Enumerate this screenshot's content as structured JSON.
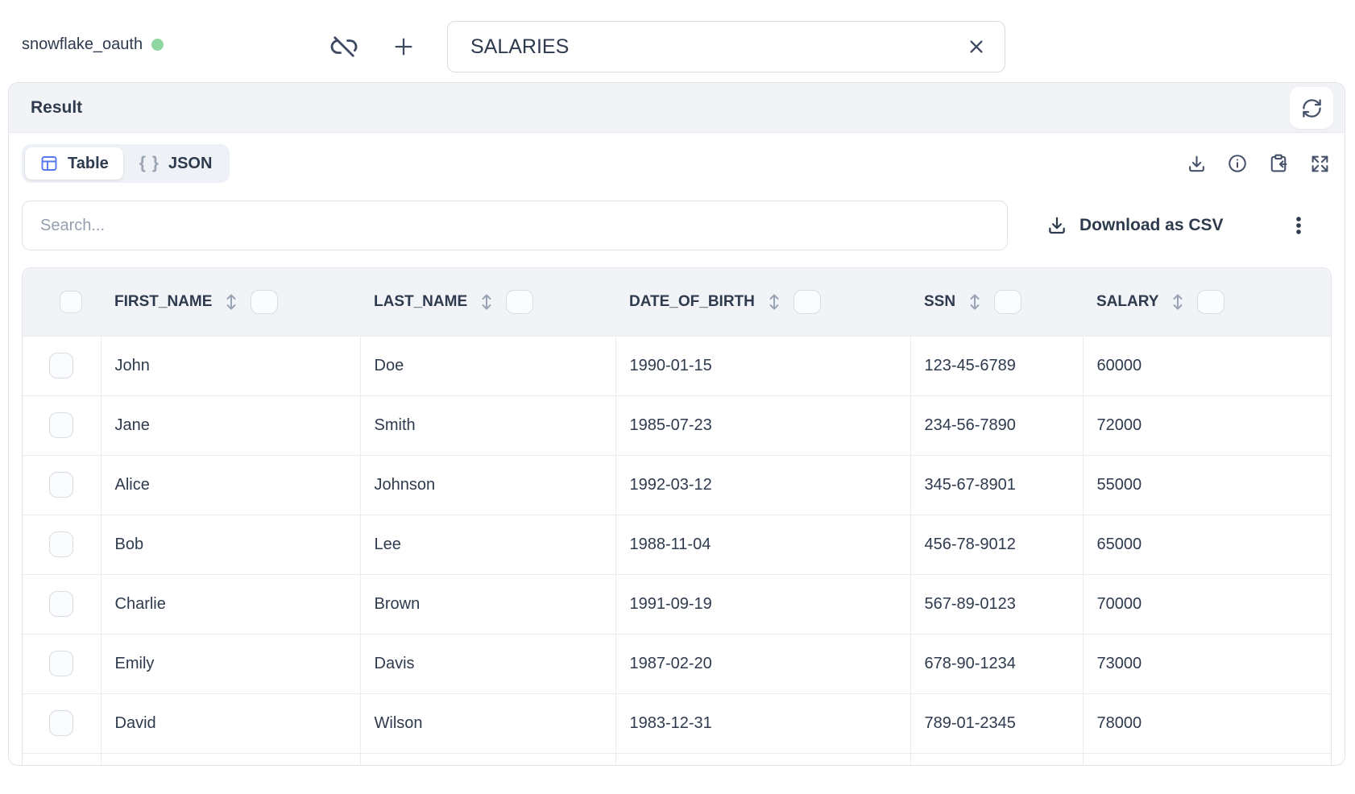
{
  "colors": {
    "accent_blue": "#5577f0",
    "status_green": "#8fd6a0",
    "ink": "#3d4961",
    "muted_gray": "#99a3b3"
  },
  "topbar": {
    "connection_label": "snowflake_oauth",
    "query_field": {
      "value": "SALARIES"
    }
  },
  "result_panel": {
    "title": "Result",
    "tabs": {
      "table_label": "Table",
      "json_glyph": "{ }",
      "json_label": "JSON"
    },
    "search_placeholder": "Search...",
    "download_csv_label": "Download as CSV",
    "table": {
      "columns": [
        "FIRST_NAME",
        "LAST_NAME",
        "DATE_OF_BIRTH",
        "SSN",
        "SALARY"
      ],
      "rows": [
        [
          "John",
          "Doe",
          "1990-01-15",
          "123-45-6789",
          "60000"
        ],
        [
          "Jane",
          "Smith",
          "1985-07-23",
          "234-56-7890",
          "72000"
        ],
        [
          "Alice",
          "Johnson",
          "1992-03-12",
          "345-67-8901",
          "55000"
        ],
        [
          "Bob",
          "Lee",
          "1988-11-04",
          "456-78-9012",
          "65000"
        ],
        [
          "Charlie",
          "Brown",
          "1991-09-19",
          "567-89-0123",
          "70000"
        ],
        [
          "Emily",
          "Davis",
          "1987-02-20",
          "678-90-1234",
          "73000"
        ],
        [
          "David",
          "Wilson",
          "1983-12-31",
          "789-01-2345",
          "78000"
        ]
      ]
    }
  },
  "icons": {
    "connection_status": "status-dot",
    "top_left": "unlink-icon",
    "top_add": "plus-icon",
    "query_clear": "close-icon",
    "header_action": "refresh-icon",
    "table_tab": "table-grid-icon",
    "json_tab": "braces-glyph",
    "toolbar": [
      "download-icon",
      "info-icon",
      "clipboard-paste-icon",
      "expand-icon"
    ],
    "csv_button": "download-icon",
    "more_menu": "kebab-icon",
    "column_sort": "sort-vertical-icon"
  }
}
